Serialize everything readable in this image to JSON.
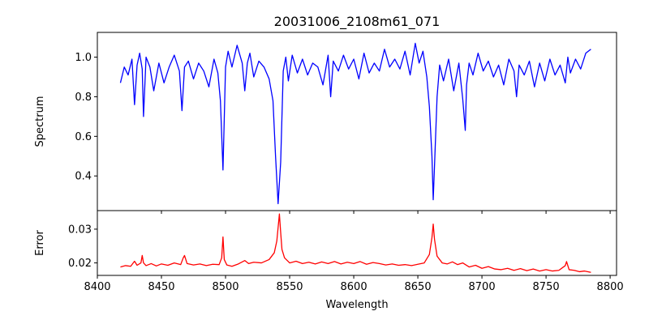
{
  "chart_data": [
    {
      "type": "line",
      "title": "20031006_2108m61_071",
      "xlabel": "",
      "ylabel": "Spectrum",
      "xlim": [
        8400,
        8805
      ],
      "ylim": [
        0.225,
        1.125
      ],
      "xticks": [
        8400,
        8450,
        8500,
        8550,
        8600,
        8650,
        8700,
        8750,
        8800
      ],
      "yticks": [
        0.4,
        0.6,
        0.8,
        1.0
      ],
      "ytick_labels": [
        "0.4",
        "0.6",
        "0.8",
        "1.0"
      ],
      "show_xtick_labels": false,
      "grid": false,
      "series": [
        {
          "color": "#0000ff",
          "x": [
            8418,
            8421,
            8424,
            8427,
            8429,
            8431,
            8433,
            8435,
            8436,
            8438,
            8441,
            8444,
            8448,
            8452,
            8456,
            8460,
            8464,
            8466,
            8468,
            8471,
            8475,
            8479,
            8483,
            8487,
            8491,
            8494,
            8496,
            8498,
            8500,
            8502,
            8505,
            8509,
            8513,
            8515,
            8517,
            8519,
            8522,
            8526,
            8530,
            8534,
            8537,
            8539,
            8541,
            8543,
            8545,
            8547,
            8549,
            8552,
            8556,
            8560,
            8564,
            8568,
            8572,
            8576,
            8580,
            8582,
            8584,
            8588,
            8592,
            8596,
            8600,
            8604,
            8608,
            8612,
            8616,
            8620,
            8624,
            8628,
            8632,
            8636,
            8640,
            8644,
            8648,
            8651,
            8654,
            8657,
            8659,
            8661,
            8662,
            8663,
            8665,
            8667,
            8670,
            8674,
            8678,
            8682,
            8685,
            8687,
            8688,
            8690,
            8693,
            8697,
            8701,
            8705,
            8709,
            8713,
            8717,
            8721,
            8725,
            8727,
            8729,
            8733,
            8737,
            8741,
            8745,
            8749,
            8753,
            8757,
            8761,
            8765,
            8767,
            8769,
            8773,
            8777,
            8781,
            8785
          ],
          "y": [
            0.87,
            0.95,
            0.91,
            0.99,
            0.76,
            0.96,
            1.02,
            0.94,
            0.7,
            1.0,
            0.95,
            0.83,
            0.97,
            0.87,
            0.95,
            1.01,
            0.93,
            0.73,
            0.95,
            0.98,
            0.89,
            0.97,
            0.93,
            0.85,
            0.99,
            0.92,
            0.78,
            0.43,
            0.95,
            1.03,
            0.95,
            1.06,
            0.97,
            0.83,
            0.97,
            1.02,
            0.9,
            0.98,
            0.95,
            0.89,
            0.78,
            0.5,
            0.26,
            0.47,
            0.93,
            1.0,
            0.88,
            1.01,
            0.92,
            0.99,
            0.91,
            0.97,
            0.95,
            0.86,
            1.01,
            0.8,
            0.98,
            0.93,
            1.01,
            0.94,
            0.99,
            0.89,
            1.02,
            0.92,
            0.97,
            0.93,
            1.04,
            0.95,
            0.99,
            0.94,
            1.03,
            0.91,
            1.07,
            0.97,
            1.03,
            0.9,
            0.75,
            0.5,
            0.28,
            0.45,
            0.8,
            0.96,
            0.88,
            0.99,
            0.83,
            0.97,
            0.79,
            0.63,
            0.86,
            0.97,
            0.91,
            1.02,
            0.93,
            0.98,
            0.9,
            0.96,
            0.86,
            0.99,
            0.93,
            0.8,
            0.96,
            0.91,
            0.98,
            0.85,
            0.97,
            0.88,
            0.99,
            0.91,
            0.96,
            0.87,
            1.0,
            0.92,
            0.99,
            0.94,
            1.02,
            1.04
          ]
        }
      ]
    },
    {
      "type": "line",
      "title": "",
      "xlabel": "Wavelength",
      "ylabel": "Error",
      "xlim": [
        8400,
        8805
      ],
      "ylim": [
        0.0163,
        0.0355
      ],
      "xticks": [
        8400,
        8450,
        8500,
        8550,
        8600,
        8650,
        8700,
        8750,
        8800
      ],
      "xtick_labels": [
        "8400",
        "8450",
        "8500",
        "8550",
        "8600",
        "8650",
        "8700",
        "8750",
        "8800"
      ],
      "yticks": [
        0.02,
        0.03
      ],
      "ytick_labels": [
        "0.02",
        "0.03"
      ],
      "show_xtick_labels": true,
      "grid": false,
      "series": [
        {
          "color": "#ff0000",
          "x": [
            8418,
            8422,
            8426,
            8429,
            8431,
            8434,
            8435,
            8436,
            8438,
            8442,
            8446,
            8450,
            8455,
            8460,
            8465,
            8467,
            8468,
            8470,
            8475,
            8480,
            8485,
            8490,
            8495,
            8497,
            8498,
            8499,
            8501,
            8505,
            8510,
            8515,
            8518,
            8522,
            8528,
            8534,
            8538,
            8540,
            8542,
            8543,
            8544,
            8546,
            8550,
            8555,
            8560,
            8565,
            8570,
            8575,
            8580,
            8585,
            8590,
            8595,
            8600,
            8605,
            8610,
            8615,
            8620,
            8625,
            8630,
            8635,
            8640,
            8645,
            8650,
            8655,
            8659,
            8661,
            8662,
            8663,
            8665,
            8669,
            8673,
            8677,
            8681,
            8685,
            8690,
            8695,
            8700,
            8705,
            8710,
            8715,
            8720,
            8725,
            8730,
            8735,
            8740,
            8745,
            8750,
            8755,
            8760,
            8765,
            8766,
            8768,
            8772,
            8776,
            8780,
            8785
          ],
          "y": [
            0.0188,
            0.0192,
            0.019,
            0.0205,
            0.0193,
            0.02,
            0.0222,
            0.02,
            0.0192,
            0.0198,
            0.0191,
            0.0197,
            0.0193,
            0.02,
            0.0195,
            0.0215,
            0.0222,
            0.0198,
            0.0194,
            0.0197,
            0.0192,
            0.0196,
            0.0195,
            0.0215,
            0.0277,
            0.021,
            0.0194,
            0.019,
            0.0197,
            0.0207,
            0.0198,
            0.0202,
            0.02,
            0.021,
            0.023,
            0.0265,
            0.0345,
            0.029,
            0.024,
            0.0215,
            0.02,
            0.0205,
            0.0198,
            0.0202,
            0.0197,
            0.0203,
            0.0198,
            0.0204,
            0.0197,
            0.0202,
            0.0198,
            0.0204,
            0.0196,
            0.0201,
            0.0198,
            0.0194,
            0.0197,
            0.0193,
            0.0195,
            0.0192,
            0.0196,
            0.02,
            0.0225,
            0.0275,
            0.0315,
            0.027,
            0.022,
            0.02,
            0.0197,
            0.0203,
            0.0195,
            0.02,
            0.0188,
            0.0193,
            0.0184,
            0.0189,
            0.0182,
            0.018,
            0.0184,
            0.0178,
            0.0183,
            0.0177,
            0.0182,
            0.0176,
            0.018,
            0.0176,
            0.0178,
            0.0192,
            0.0204,
            0.018,
            0.0178,
            0.0174,
            0.0176,
            0.0172
          ]
        }
      ]
    }
  ]
}
